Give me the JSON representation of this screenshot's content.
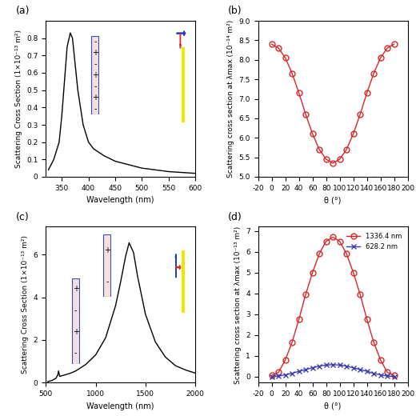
{
  "chart_data": [
    {
      "type": "line",
      "title": "(a)",
      "xlabel": "Wavelength (nm)",
      "ylabel": "Scattering Cross Section (1×10⁻¹³ m²)",
      "x": [
        325,
        335,
        340,
        345,
        350,
        355,
        360,
        366,
        370,
        375,
        380,
        390,
        400,
        410,
        420,
        430,
        450,
        475,
        500,
        550,
        600
      ],
      "series": [
        {
          "color": "#000000",
          "marker": "none",
          "line_style": "solid",
          "values": [
            0.04,
            0.1,
            0.15,
            0.2,
            0.35,
            0.55,
            0.75,
            0.83,
            0.8,
            0.65,
            0.5,
            0.3,
            0.2,
            0.16,
            0.14,
            0.12,
            0.09,
            0.07,
            0.05,
            0.03,
            0.02
          ]
        }
      ],
      "xlim": [
        320,
        600
      ],
      "xticks": [
        350,
        400,
        450,
        500,
        550,
        600
      ],
      "ylim": [
        0,
        0.9
      ],
      "yticks": [
        0,
        0.1,
        0.2,
        0.3,
        0.4,
        0.5,
        0.6,
        0.7,
        0.8
      ],
      "annotations": [
        [
          "-",
          "+",
          "-",
          "+",
          "-",
          "+",
          "-"
        ]
      ]
    },
    {
      "type": "line",
      "title": "(b)",
      "xlabel": "θ (°)",
      "ylabel": "Scattering cross section at λmax (10⁻¹⁴ m²)",
      "x": [
        0,
        10,
        20,
        30,
        40,
        50,
        60,
        70,
        80,
        90,
        100,
        110,
        120,
        130,
        140,
        150,
        160,
        170,
        180
      ],
      "series": [
        {
          "color": "#d62728",
          "marker": "circle",
          "line_style": "solid",
          "values": [
            8.4,
            8.3,
            8.05,
            7.65,
            7.15,
            6.6,
            6.1,
            5.7,
            5.45,
            5.35,
            5.45,
            5.7,
            6.1,
            6.6,
            7.15,
            7.65,
            8.05,
            8.3,
            8.4
          ]
        }
      ],
      "xlim": [
        -20,
        200
      ],
      "xticks": [
        -20,
        0,
        20,
        40,
        60,
        80,
        100,
        120,
        140,
        160,
        180,
        200
      ],
      "ylim": [
        5.0,
        9.0
      ],
      "yticks": [
        {
          "value": 5.0,
          "label": "5.0"
        },
        {
          "value": 5.5,
          "label": "5.5"
        },
        {
          "value": 6.0,
          "label": "6.0"
        },
        {
          "value": 6.5,
          "label": "6.5"
        },
        {
          "value": 7.0,
          "label": "7.0"
        },
        {
          "value": 7.5,
          "label": "7.5"
        },
        {
          "value": 8.0,
          "label": "8.0"
        },
        {
          "value": 8.5,
          "label": "8.5"
        },
        {
          "value": 9.0,
          "label": "9.0"
        }
      ]
    },
    {
      "type": "line",
      "title": "(c)",
      "xlabel": "Wavelength (nm)",
      "ylabel": "Scattering Cross Section (1×10⁻¹³ m²)",
      "x": [
        520,
        560,
        600,
        620,
        628,
        640,
        680,
        750,
        800,
        900,
        1000,
        1100,
        1200,
        1250,
        1300,
        1336,
        1380,
        1420,
        1500,
        1600,
        1700,
        1800,
        1900,
        2000
      ],
      "series": [
        {
          "color": "#000000",
          "marker": "none",
          "line_style": "solid",
          "values": [
            0.05,
            0.1,
            0.2,
            0.35,
            0.55,
            0.3,
            0.35,
            0.45,
            0.55,
            0.85,
            1.3,
            2.1,
            3.6,
            4.7,
            5.9,
            6.55,
            6.1,
            5.0,
            3.2,
            1.9,
            1.2,
            0.8,
            0.6,
            0.45
          ]
        }
      ],
      "xlim": [
        500,
        2000
      ],
      "xticks": [
        500,
        1000,
        1500,
        2000
      ],
      "ylim": [
        0,
        7.3
      ],
      "yticks": [
        0,
        2,
        4,
        6
      ],
      "annotations": [
        [
          "+",
          "-",
          "+",
          "-"
        ],
        [
          "+",
          "-"
        ]
      ]
    },
    {
      "type": "line",
      "title": "(d)",
      "xlabel": "θ (°)",
      "ylabel": "Scattering cross section at λmax (10⁻¹³ m²)",
      "x": [
        0,
        10,
        20,
        30,
        40,
        50,
        60,
        70,
        80,
        90,
        100,
        110,
        120,
        130,
        140,
        150,
        160,
        170,
        180
      ],
      "series": [
        {
          "name": "1336.4 nm",
          "color": "#d62728",
          "marker": "circle",
          "line_style": "solid",
          "values": [
            0.05,
            0.2,
            0.8,
            1.65,
            2.75,
            3.95,
            5.0,
            5.9,
            6.5,
            6.7,
            6.5,
            5.9,
            5.0,
            3.95,
            2.75,
            1.65,
            0.8,
            0.2,
            0.05
          ]
        },
        {
          "name": "628.2 nm",
          "color": "#3b3bb0",
          "marker": "x",
          "line_style": "solid",
          "values": [
            0.0,
            0.02,
            0.08,
            0.15,
            0.25,
            0.33,
            0.42,
            0.5,
            0.55,
            0.57,
            0.55,
            0.5,
            0.42,
            0.33,
            0.25,
            0.15,
            0.08,
            0.02,
            0.0
          ]
        }
      ],
      "xlim": [
        -20,
        200
      ],
      "xticks": [
        -20,
        0,
        20,
        40,
        60,
        80,
        100,
        120,
        140,
        160,
        180,
        200
      ],
      "ylim": [
        -0.3,
        7.2
      ],
      "yticks": [
        0,
        1,
        2,
        3,
        4,
        5,
        6,
        7
      ],
      "legend": "upper right"
    }
  ]
}
